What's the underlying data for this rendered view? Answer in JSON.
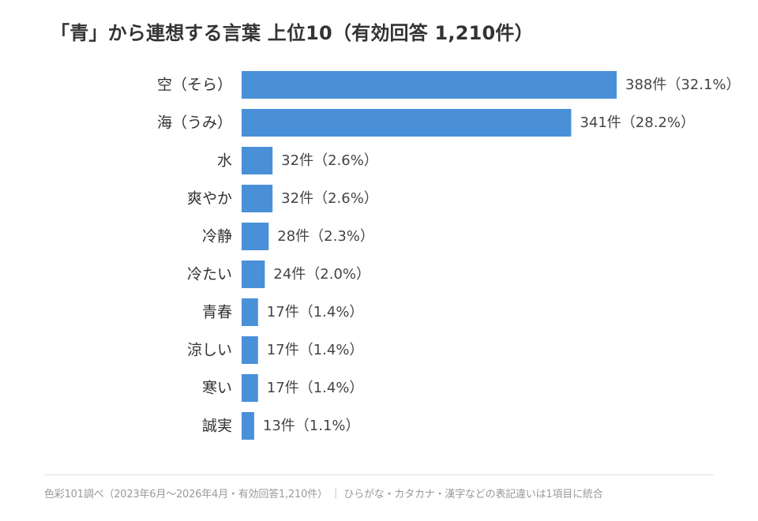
{
  "title": "「青」から連想する言葉 上位10（有効回答 1,210件）",
  "footnote": "色彩101調べ（2023年6月〜2026年4月・有効回答1,210件） ｜ ひらがな・カタカナ・漢字などの表記違いは1項目に統合",
  "colors": {
    "bar": "#4a90d9"
  },
  "chart_data": {
    "type": "bar",
    "orientation": "horizontal",
    "title": "「青」から連想する言葉 上位10（有効回答 1,210件）",
    "categories": [
      "空（そら）",
      "海（うみ）",
      "水",
      "爽やか",
      "冷静",
      "冷たい",
      "青春",
      "涼しい",
      "寒い",
      "誠実"
    ],
    "values": [
      388,
      341,
      32,
      32,
      28,
      24,
      17,
      17,
      17,
      13
    ],
    "value_labels": [
      "388件（32.1%）",
      "341件（28.2%）",
      "32件（2.6%）",
      "32件（2.6%）",
      "28件（2.3%）",
      "24件（2.0%）",
      "17件（1.4%）",
      "17件（1.4%）",
      "17件（1.4%）",
      "13件（1.1%）"
    ],
    "grid": false,
    "legend": "none"
  }
}
